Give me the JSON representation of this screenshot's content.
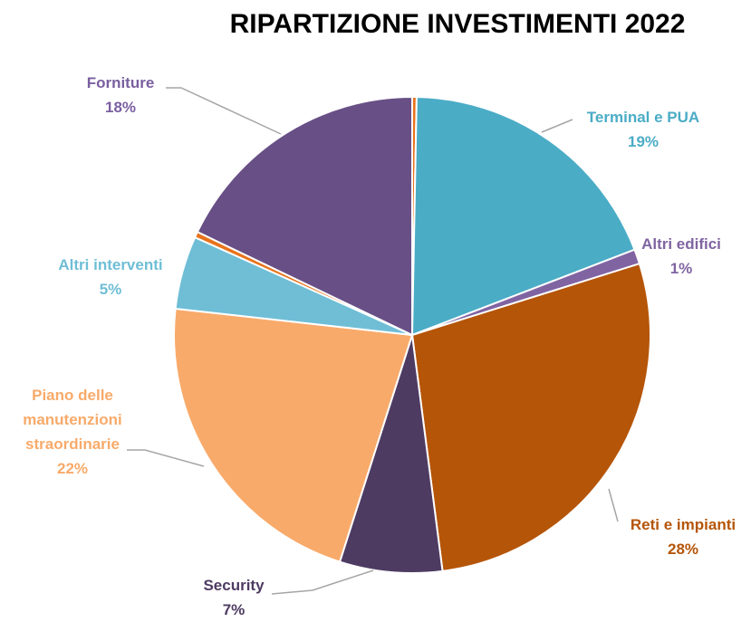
{
  "chart_data": {
    "type": "pie",
    "title": "RIPARTIZIONE INVESTIMENTI 2022",
    "categories": [
      null,
      "Terminal e PUA",
      "Altri edifici",
      "Reti e impianti",
      "Security",
      "Piano delle manutenzioni straordinarie",
      "Altri interventi",
      null,
      "Forniture"
    ],
    "values": [
      0.3,
      19,
      1,
      28,
      7,
      22,
      5,
      0.4,
      18
    ],
    "value_labels": [
      null,
      "19%",
      "1%",
      "28%",
      "7%",
      "22%",
      "5%",
      null,
      "18%"
    ],
    "colors": [
      "#e8731c",
      "#4bacc6",
      "#8064a2",
      "#b55508",
      "#4e3b62",
      "#f8aa6a",
      "#6fbed6",
      "#e8731c",
      "#684f86"
    ]
  }
}
